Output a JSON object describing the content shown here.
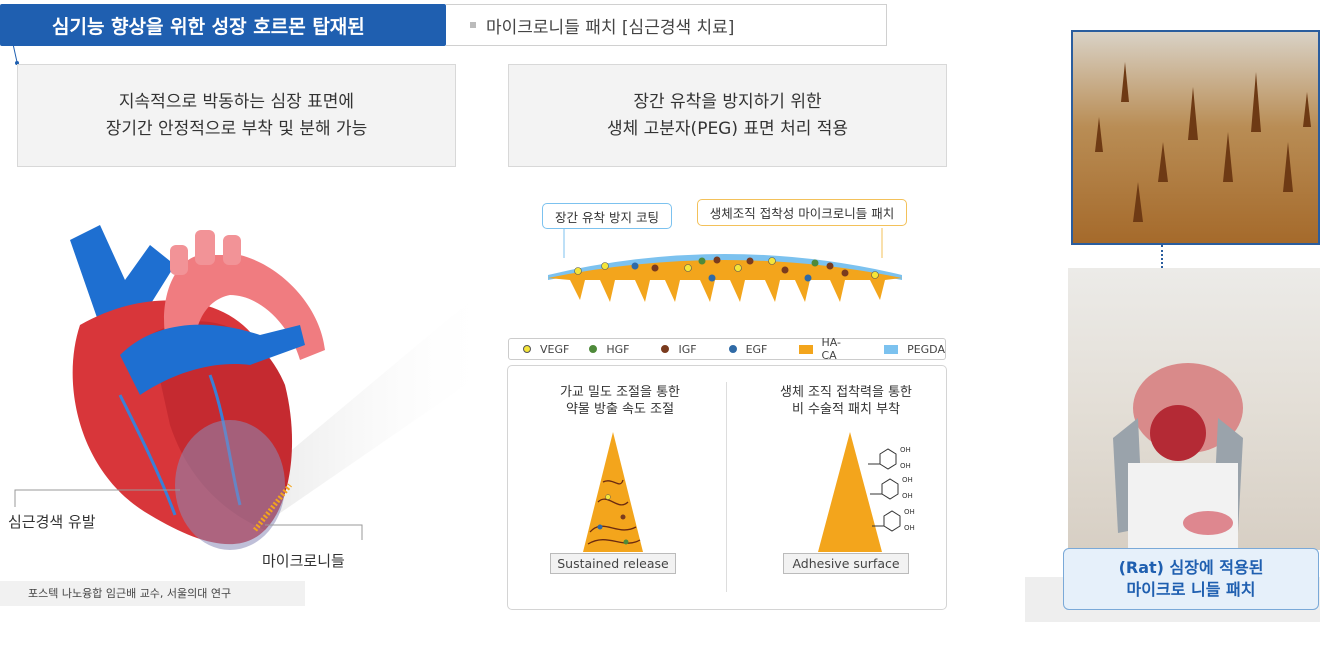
{
  "header": {
    "title": "심기능 향상을 위한 성장 호르몬 탑재된",
    "subtitle": "마이크로니들  패치 [심근경색 치료]"
  },
  "feature_boxes": [
    {
      "line1": "지속적으로 박동하는 심장 표면에",
      "line2": "장기간 안정적으로 부착 및 분해 가능"
    },
    {
      "line1": "장간 유착을 방지하기 위한",
      "line2": "생체 고분자(PEG) 표면 처리 적용"
    }
  ],
  "patch_labels": {
    "coating": "장간 유착 방지 코팅",
    "patch": "생체조직 접착성 마이크로니들 패치"
  },
  "legend": [
    {
      "label": "VEGF",
      "color": "#f5e53a",
      "shape": "dot"
    },
    {
      "label": "HGF",
      "color": "#4e8a3a",
      "shape": "dot"
    },
    {
      "label": "IGF",
      "color": "#7a3b1e",
      "shape": "dot"
    },
    {
      "label": "EGF",
      "color": "#2f6aa6",
      "shape": "dot"
    },
    {
      "label": "HA-CA",
      "color": "#f3a51c",
      "shape": "rect"
    },
    {
      "label": "PEGDA",
      "color": "#7cc2ef",
      "shape": "rect"
    }
  ],
  "panel_left": {
    "line1": "가교 밀도 조절을 통한",
    "line2": "약물 방출 속도 조절",
    "caption": "Sustained release"
  },
  "panel_right": {
    "line1": "생체 조직 접착력을 통한",
    "line2": "비 수술적 패치 부착",
    "caption": "Adhesive surface",
    "oh_label": "OH"
  },
  "heart": {
    "infarction_label": "심근경색 유발",
    "microneedle_label": "마이크로니들"
  },
  "credit": "포스텍 나노융합 임근배 교수, 서울의대 연구",
  "photo_caption": {
    "line1": "(Rat) 심장에 적용된",
    "line2": "마이크로 니들 패치"
  },
  "colors": {
    "brand_blue": "#1f5fb0",
    "patch_orange": "#f3a51c",
    "coating_blue": "#7cc2ef"
  }
}
